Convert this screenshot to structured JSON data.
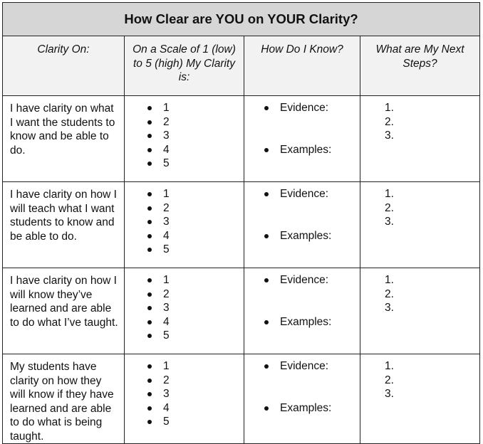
{
  "title": "How Clear are YOU on YOUR Clarity?",
  "headers": [
    "Clarity On:",
    "On a Scale of 1 (low) to 5 (high) My Clarity is:",
    "How Do I Know?",
    "What are My Next Steps?"
  ],
  "rows": [
    {
      "clarity_on": "I have clarity on what I want the students to know and be able to do.",
      "scale": [
        "1",
        "2",
        "3",
        "4",
        "5"
      ],
      "know": [
        "Evidence:",
        "Examples:"
      ],
      "steps": [
        "1.",
        "2.",
        "3."
      ]
    },
    {
      "clarity_on": "I have clarity on how I will teach what I want students to know and be able to do.",
      "scale": [
        "1",
        "2",
        "3",
        "4",
        "5"
      ],
      "know": [
        "Evidence:",
        "Examples:"
      ],
      "steps": [
        "1.",
        "2.",
        "3."
      ]
    },
    {
      "clarity_on": "I have clarity on how I will know they’ve learned and are able to do what I’ve taught.",
      "scale": [
        "1",
        "2",
        "3",
        "4",
        "5"
      ],
      "know": [
        "Evidence:",
        "Examples:"
      ],
      "steps": [
        "1.",
        "2.",
        "3."
      ]
    },
    {
      "clarity_on": "My students have clarity on how they will know if they have learned and are able to do what is being taught.",
      "scale": [
        "1",
        "2",
        "3",
        "4",
        "5"
      ],
      "know": [
        "Evidence:",
        "Examples:"
      ],
      "steps": [
        "1.",
        "2.",
        "3."
      ]
    }
  ]
}
